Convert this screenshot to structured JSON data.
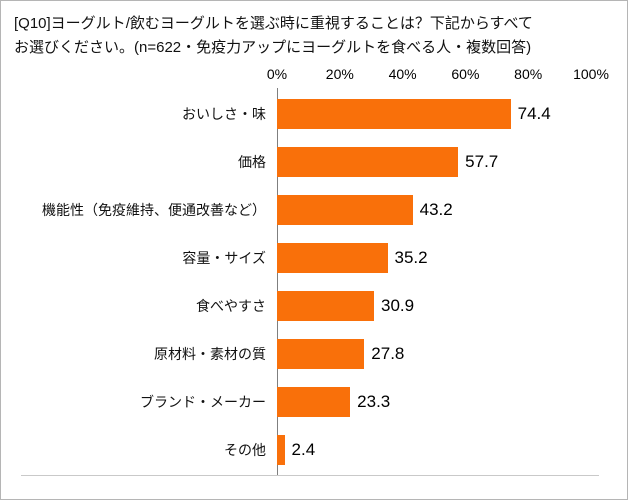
{
  "title": {
    "line1": "[Q10]ヨーグルト/飲むヨーグルトを選ぶ時に重視することは？下記からすべて",
    "line2": "お選びください。(n=622・免疫力アップにヨーグルトを食べる人・複数回答)"
  },
  "chart_data": {
    "type": "bar",
    "orientation": "horizontal",
    "title": "[Q10]ヨーグルト/飲むヨーグルトを選ぶ時に重視することは？下記からすべてお選びください。(n=622・免疫力アップにヨーグルトを食べる人・複数回答)",
    "categories": [
      "おいしさ・味",
      "価格",
      "機能性（免疫維持、便通改善など）",
      "容量・サイズ",
      "食べやすさ",
      "原材料・素材の質",
      "ブランド・メーカー",
      "その他"
    ],
    "values": [
      74.4,
      57.7,
      43.2,
      35.2,
      30.9,
      27.8,
      23.3,
      2.4
    ],
    "x_ticks": [
      "0%",
      "20%",
      "40%",
      "60%",
      "80%",
      "100%"
    ],
    "xlim": [
      0,
      100
    ],
    "grid": false,
    "legend": "none",
    "bar_color": "#f9700a",
    "axis_color": "#7f7f7f"
  }
}
